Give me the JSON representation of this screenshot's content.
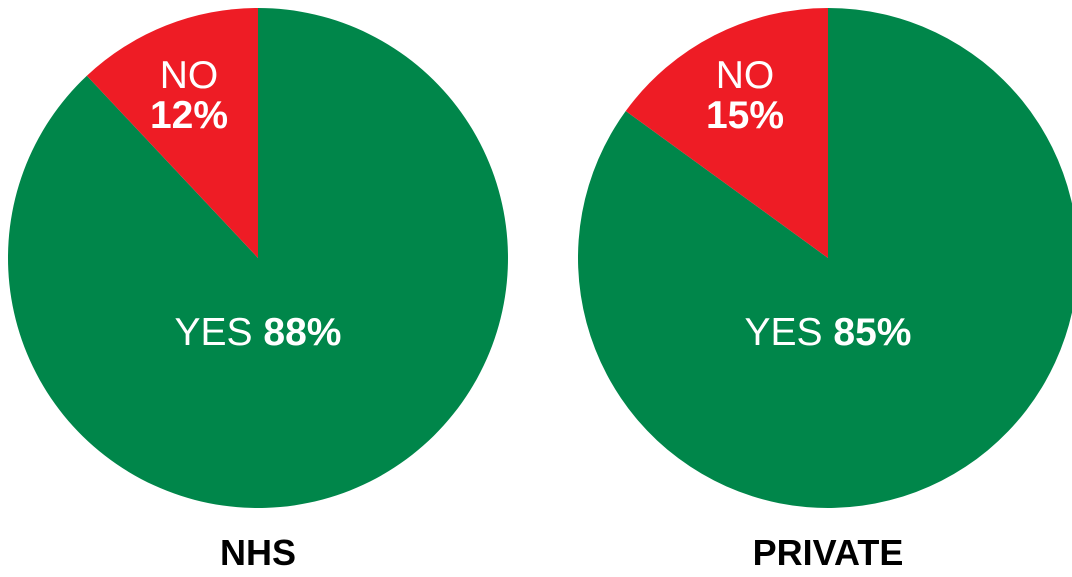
{
  "chart_data": [
    {
      "type": "pie",
      "title": "NHS",
      "slices": [
        {
          "label": "YES",
          "value": 88,
          "value_text": "88%",
          "color": "#00864A"
        },
        {
          "label": "NO",
          "value": 12,
          "value_text": "12%",
          "color": "#EE1C25"
        }
      ],
      "start": "12 o'clock",
      "direction": "clockwise",
      "legend": "none"
    },
    {
      "type": "pie",
      "title": "PRIVATE",
      "slices": [
        {
          "label": "YES",
          "value": 85,
          "value_text": "85%",
          "color": "#00864A"
        },
        {
          "label": "NO",
          "value": 15,
          "value_text": "15%",
          "color": "#EE1C25"
        }
      ],
      "start": "12 o'clock",
      "direction": "clockwise",
      "legend": "none"
    }
  ]
}
